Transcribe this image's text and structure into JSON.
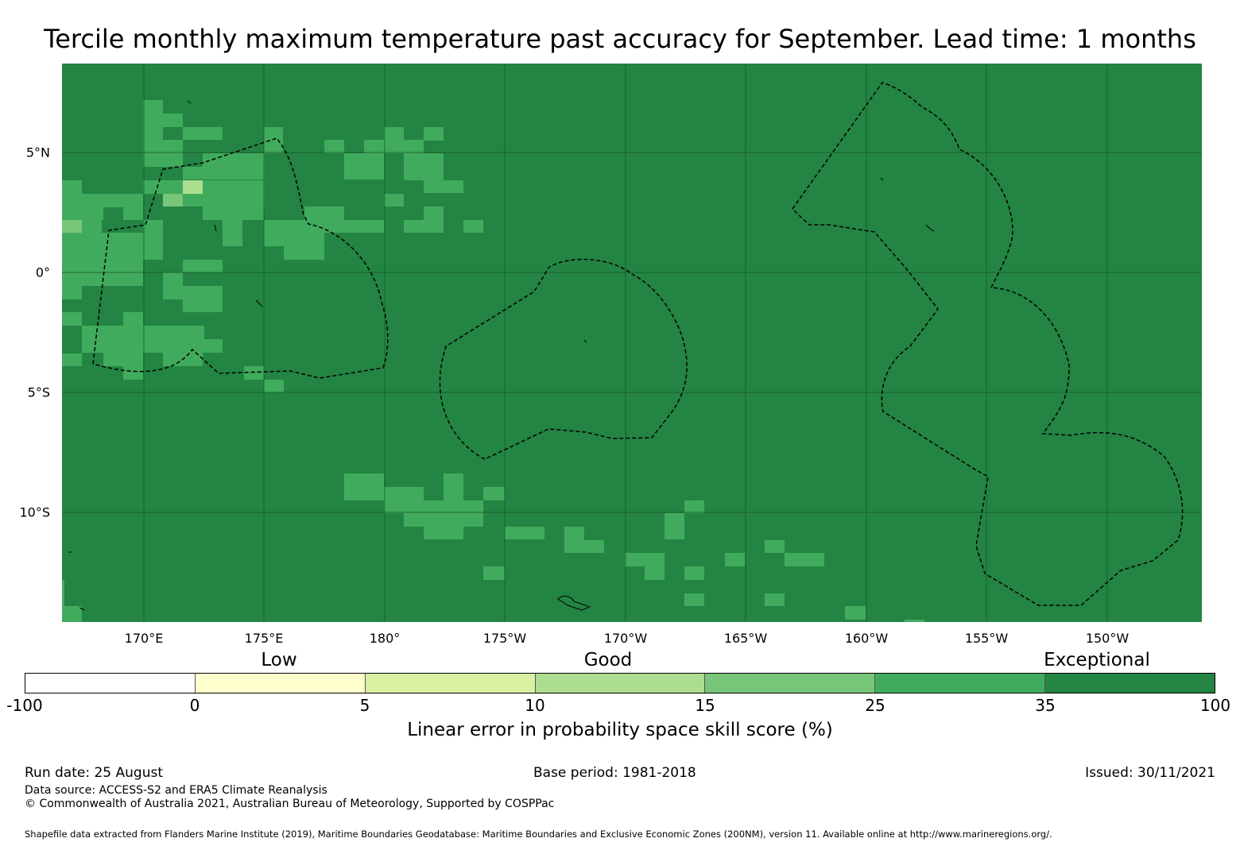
{
  "title": "Tercile monthly maximum temperature past accuracy for September. Lead time: 1 months",
  "map": {
    "background_color": "#238443",
    "cell_colors": {
      "medium": "#41ab5d",
      "light": "#78c679",
      "lighter": "#addd8e"
    },
    "lon_labels": [
      "170°E",
      "175°E",
      "180°",
      "175°W",
      "170°W",
      "165°W",
      "160°W",
      "155°W",
      "150°W"
    ],
    "lat_labels": [
      "5°N",
      "0°",
      "5°S",
      "10°S"
    ]
  },
  "legend": {
    "categories": [
      "Low",
      "Good",
      "Exceptional"
    ],
    "ticks": [
      "-100",
      "0",
      "5",
      "10",
      "15",
      "25",
      "35",
      "100"
    ],
    "colors": [
      "#ffffff",
      "#ffffcc",
      "#d9f0a3",
      "#addd8e",
      "#78c679",
      "#41ab5d",
      "#238443"
    ],
    "label": "Linear error in probability space skill score (%)"
  },
  "footer": {
    "run_date": "Run date: 25 August",
    "base_period": "Base period: 1981-2018",
    "issued": "Issued: 30/11/2021",
    "data_source": "Data source: ACCESS-S2 and ERA5 Climate Reanalysis",
    "copyright": "© Commonwealth of Australia 2021, Australian Bureau of Meteorology, Supported by COSPPac",
    "shapefile": "Shapefile data extracted from Flanders Marine Institute (2019), Maritime Boundaries Geodatabase: Maritime Boundaries and Exclusive Economic Zones (200NM), version 11. Available online at http://www.marineregions.org/."
  }
}
